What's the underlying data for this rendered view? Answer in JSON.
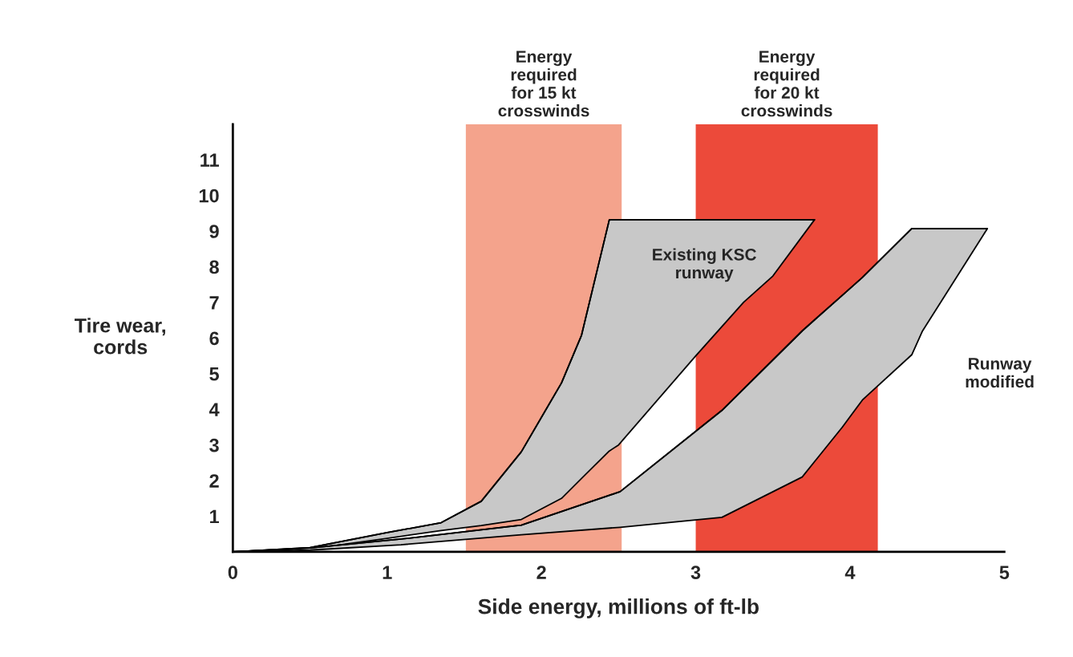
{
  "chart_data": {
    "type": "line",
    "xlabel": "Side energy, millions of ft-lb",
    "ylabel": "Tire wear,\ncords",
    "xlim": [
      0,
      5
    ],
    "xticks": [
      0,
      1,
      2,
      3,
      4,
      5
    ],
    "ylim": [
      0,
      12
    ],
    "yticks": [
      1,
      2,
      3,
      4,
      5,
      6,
      7,
      8,
      9,
      10,
      11
    ],
    "bands": [
      {
        "axis": "x",
        "from": 1.51,
        "to": 2.52,
        "label": "Energy\nrequired\nfor 15 kt\ncrosswinds",
        "color": "#f4a38c"
      },
      {
        "axis": "x",
        "from": 3.0,
        "to": 4.18,
        "label": "Energy\nrequired\nfor 20 kt\ncrosswinds",
        "color": "#ec4a3a"
      }
    ],
    "series": [
      {
        "color": "#000000",
        "x": [
          0,
          0.5,
          1,
          1.35,
          1.61,
          1.87,
          2.13,
          2.26,
          2.44,
          2.5,
          3,
          3.31,
          3.5,
          3.77
        ],
        "values": [
          0,
          0.12,
          0.54,
          0.82,
          1.42,
          2.81,
          4.74,
          6.08,
          9.32,
          9.32,
          9.32,
          9.32,
          9.32,
          9.32
        ],
        "upper": [
          0,
          0.12,
          0.54,
          0.82,
          1.42,
          2.81,
          4.74,
          6.08,
          9.32,
          9.32,
          9.32,
          9.32,
          9.32,
          9.32
        ],
        "lower": [
          0,
          0.08,
          0.38,
          0.6,
          0.74,
          0.91,
          1.5,
          2.06,
          2.83,
          3.0,
          5.5,
          7.0,
          7.74,
          9.32
        ]
      },
      {
        "color": "#000000",
        "x": [
          0,
          0.5,
          1.09,
          1.87,
          2.51,
          3.17,
          3.69,
          3.95,
          4.08,
          4.4,
          4.47,
          4.89
        ],
        "values": [
          0,
          0.11,
          0.36,
          0.75,
          1.69,
          3.97,
          6.2,
          7.2,
          7.7,
          9.07,
          9.07,
          9.07
        ],
        "upper": [
          0,
          0.11,
          0.36,
          0.75,
          1.69,
          3.97,
          6.2,
          7.2,
          7.7,
          9.07,
          9.07,
          9.07
        ],
        "lower": [
          0,
          0.05,
          0.2,
          0.48,
          0.69,
          0.97,
          2.1,
          3.5,
          4.26,
          5.53,
          6.2,
          9.07
        ]
      }
    ],
    "annotations": [
      "Existing KSC\nrunway",
      "Runway\nmodified"
    ]
  }
}
